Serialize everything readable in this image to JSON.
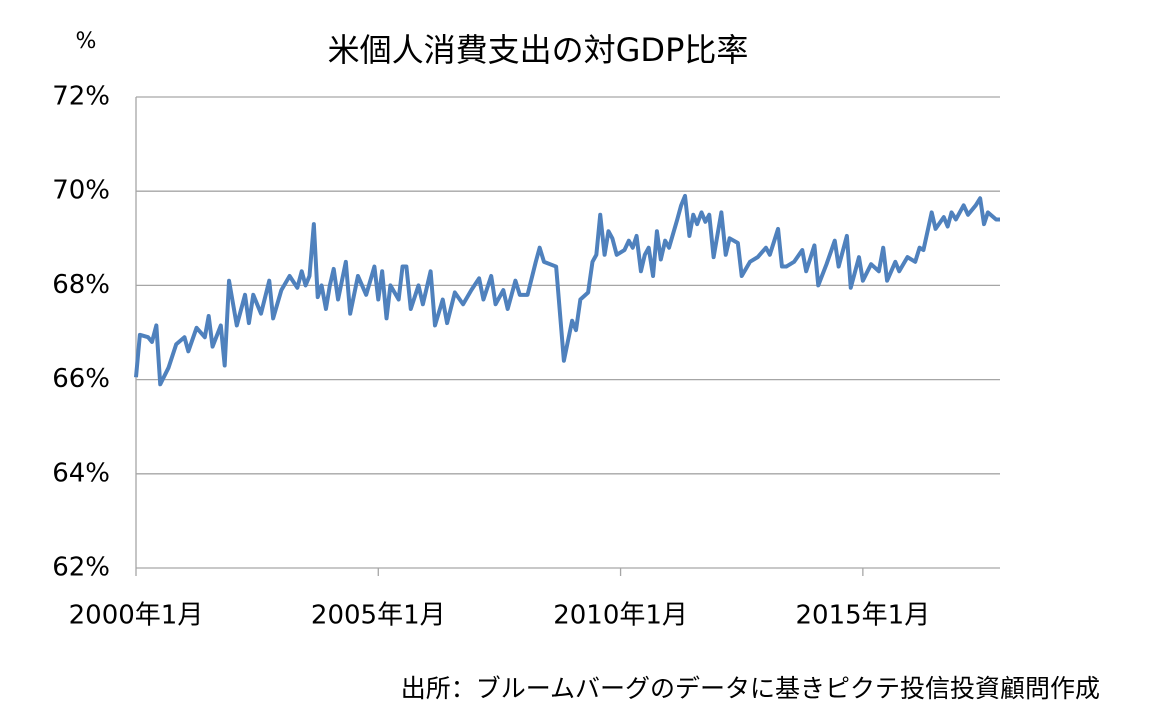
{
  "chart_data": {
    "type": "line",
    "title": "米個人消費支出の対GDP比率",
    "y_label": "%",
    "source": "出所：ブルームバーグのデータに基きピクテ投信投資顧問作成",
    "xlim": [
      2000,
      2017.83
    ],
    "xticks": [
      {
        "value": 2000,
        "label": "2000年1月"
      },
      {
        "value": 2005,
        "label": "2005年1月"
      },
      {
        "value": 2010,
        "label": "2010年1月"
      },
      {
        "value": 2015,
        "label": "2015年1月"
      }
    ],
    "ylim": [
      62,
      72
    ],
    "yticks": [
      {
        "value": 62,
        "label": "62%"
      },
      {
        "value": 64,
        "label": "64%"
      },
      {
        "value": 66,
        "label": "66%"
      },
      {
        "value": 68,
        "label": "68%"
      },
      {
        "value": 70,
        "label": "70%"
      },
      {
        "value": 72,
        "label": "72%"
      }
    ],
    "grid": true,
    "series": [
      {
        "color": "#4f81bd",
        "x": [
          2000.0,
          2000.08,
          2000.25,
          2000.33,
          2000.42,
          2000.5,
          2000.67,
          2000.83,
          2001.0,
          2001.08,
          2001.25,
          2001.42,
          2001.5,
          2001.58,
          2001.75,
          2001.83,
          2001.92,
          2002.08,
          2002.25,
          2002.33,
          2002.42,
          2002.58,
          2002.75,
          2002.83,
          2003.0,
          2003.17,
          2003.33,
          2003.42,
          2003.5,
          2003.58,
          2003.67,
          2003.75,
          2003.83,
          2003.92,
          2004.0,
          2004.08,
          2004.17,
          2004.33,
          2004.42,
          2004.58,
          2004.75,
          2004.92,
          2005.0,
          2005.08,
          2005.17,
          2005.25,
          2005.42,
          2005.5,
          2005.58,
          2005.67,
          2005.83,
          2005.92,
          2006.08,
          2006.17,
          2006.33,
          2006.42,
          2006.58,
          2006.75,
          2006.92,
          2007.08,
          2007.17,
          2007.33,
          2007.42,
          2007.58,
          2007.67,
          2007.83,
          2007.92,
          2008.08,
          2008.25,
          2008.33,
          2008.42,
          2008.67,
          2008.83,
          2009.0,
          2009.08,
          2009.17,
          2009.33,
          2009.42,
          2009.5,
          2009.58,
          2009.67,
          2009.75,
          2009.83,
          2009.92,
          2010.08,
          2010.17,
          2010.25,
          2010.33,
          2010.42,
          2010.5,
          2010.58,
          2010.67,
          2010.75,
          2010.83,
          2010.92,
          2011.0,
          2011.17,
          2011.25,
          2011.33,
          2011.42,
          2011.5,
          2011.58,
          2011.67,
          2011.75,
          2011.83,
          2011.92,
          2012.08,
          2012.17,
          2012.25,
          2012.42,
          2012.5,
          2012.67,
          2012.83,
          2013.0,
          2013.08,
          2013.25,
          2013.33,
          2013.42,
          2013.58,
          2013.75,
          2013.83,
          2014.0,
          2014.08,
          2014.25,
          2014.42,
          2014.5,
          2014.67,
          2014.75,
          2014.92,
          2015.0,
          2015.17,
          2015.33,
          2015.42,
          2015.5,
          2015.67,
          2015.75,
          2015.92,
          2016.08,
          2016.17,
          2016.25,
          2016.42,
          2016.5,
          2016.67,
          2016.75,
          2016.83,
          2016.92,
          2017.08,
          2017.17,
          2017.33,
          2017.42,
          2017.5,
          2017.58,
          2017.75,
          2017.83
        ],
        "values": [
          66.05,
          66.95,
          66.9,
          66.8,
          67.15,
          65.9,
          66.25,
          66.75,
          66.9,
          66.6,
          67.1,
          66.9,
          67.35,
          66.7,
          67.15,
          66.3,
          68.1,
          67.15,
          67.8,
          67.2,
          67.8,
          67.4,
          68.1,
          67.3,
          67.9,
          68.2,
          67.95,
          68.3,
          68.0,
          68.2,
          69.3,
          67.75,
          68.0,
          67.5,
          68.0,
          68.35,
          67.7,
          68.5,
          67.4,
          68.2,
          67.8,
          68.4,
          67.7,
          68.3,
          67.3,
          68.0,
          67.7,
          68.4,
          68.4,
          67.5,
          68.0,
          67.6,
          68.3,
          67.15,
          67.7,
          67.2,
          67.85,
          67.6,
          67.9,
          68.15,
          67.7,
          68.2,
          67.6,
          67.9,
          67.5,
          68.1,
          67.8,
          67.8,
          68.5,
          68.8,
          68.5,
          68.4,
          66.4,
          67.25,
          67.05,
          67.7,
          67.85,
          68.5,
          68.65,
          69.5,
          68.65,
          69.15,
          69.0,
          68.65,
          68.75,
          68.95,
          68.8,
          69.05,
          68.3,
          68.65,
          68.8,
          68.2,
          69.15,
          68.55,
          68.95,
          68.8,
          69.4,
          69.7,
          69.9,
          69.05,
          69.5,
          69.3,
          69.55,
          69.35,
          69.5,
          68.6,
          69.55,
          68.65,
          69.0,
          68.9,
          68.2,
          68.5,
          68.6,
          68.8,
          68.65,
          69.2,
          68.4,
          68.4,
          68.5,
          68.75,
          68.3,
          68.85,
          68.0,
          68.45,
          68.95,
          68.4,
          69.05,
          67.95,
          68.6,
          68.1,
          68.45,
          68.3,
          68.8,
          68.1,
          68.5,
          68.3,
          68.6,
          68.5,
          68.8,
          68.75,
          69.55,
          69.2,
          69.45,
          69.25,
          69.55,
          69.4,
          69.7,
          69.5,
          69.7,
          69.85,
          69.3,
          69.55,
          69.4,
          69.4
        ]
      }
    ]
  }
}
